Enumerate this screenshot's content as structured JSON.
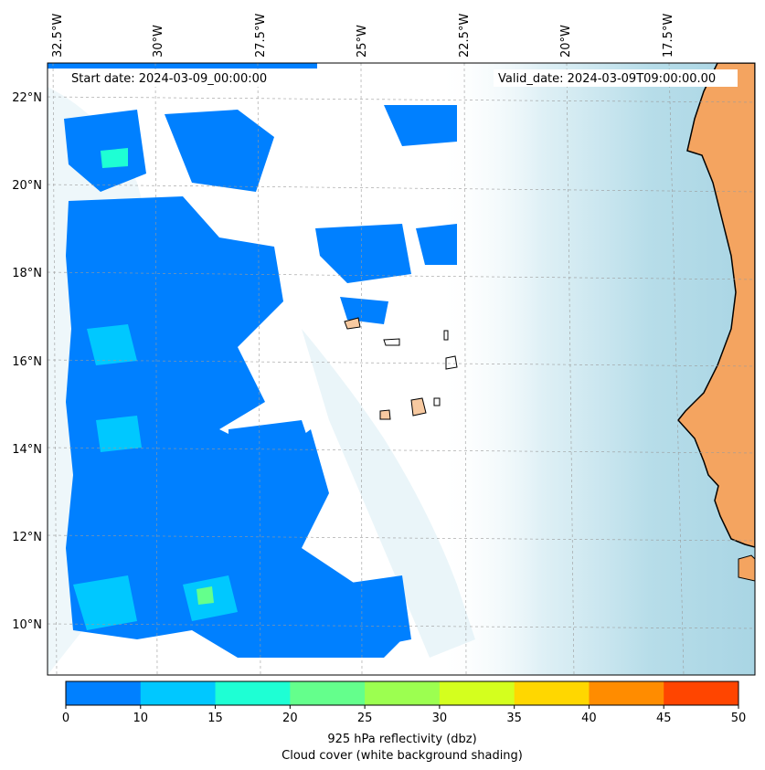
{
  "map": {
    "start_label": "Start date: 2024-03-09_00:00:00",
    "valid_label": "Valid_date: 2024-03-09T09:00:00.00",
    "lon_ticks": [
      "32.5°W",
      "30°W",
      "27.5°W",
      "25°W",
      "22.5°W",
      "20°W",
      "17.5°W"
    ],
    "lat_ticks": [
      "22°N",
      "20°N",
      "18°N",
      "16°N",
      "14°N",
      "12°N",
      "10°N"
    ],
    "extent": {
      "lon_min": -33.0,
      "lon_max": -15.0,
      "lat_min": 8.9,
      "lat_max": 22.8
    },
    "colors": {
      "land": "#f4a460",
      "island": "#f7c9a0",
      "cloud": "#add8e6",
      "reflectivity_0_10": "#0080ff"
    }
  },
  "colorbar": {
    "ticks": [
      "0",
      "10",
      "15",
      "20",
      "25",
      "30",
      "35",
      "40",
      "45",
      "50"
    ],
    "colors": [
      "#0080ff",
      "#00c8ff",
      "#1effd4",
      "#64ff8c",
      "#9cff50",
      "#d4ff1e",
      "#ffd700",
      "#ff8c00",
      "#ff4500"
    ],
    "title_line1": "925 hPa reflectivity (dbz)",
    "title_line2": "Cloud cover (white background shading)"
  }
}
